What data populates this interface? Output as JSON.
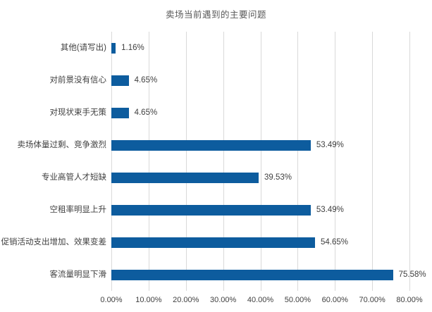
{
  "chart_data": {
    "type": "bar",
    "orientation": "horizontal",
    "title": "卖场当前遇到的主要问题",
    "categories": [
      "其他(请写出)",
      "对前景没有信心",
      "对现状束手无策",
      "卖场体量过剩、竞争激烈",
      "专业高管人才短缺",
      "空租率明显上升",
      "促销活动支出增加、效果变差",
      "客流量明显下滑"
    ],
    "values": [
      1.16,
      4.65,
      4.65,
      53.49,
      39.53,
      53.49,
      54.65,
      75.58
    ],
    "value_labels": [
      "1.16%",
      "4.65%",
      "4.65%",
      "53.49%",
      "39.53%",
      "53.49%",
      "54.65%",
      "75.58%"
    ],
    "x_ticks": [
      "0.00%",
      "10.00%",
      "20.00%",
      "30.00%",
      "40.00%",
      "50.00%",
      "60.00%",
      "70.00%",
      "80.00%"
    ],
    "x_tick_values": [
      0,
      10,
      20,
      30,
      40,
      50,
      60,
      70,
      80
    ],
    "xlim": [
      0,
      80
    ],
    "xlabel": "",
    "ylabel": "",
    "grid": "vertical",
    "legend": "none",
    "bar_color": "#0D5C9E",
    "gridline_color": "#D9D9D9",
    "label_color": "#404040",
    "title_color": "#595959"
  }
}
